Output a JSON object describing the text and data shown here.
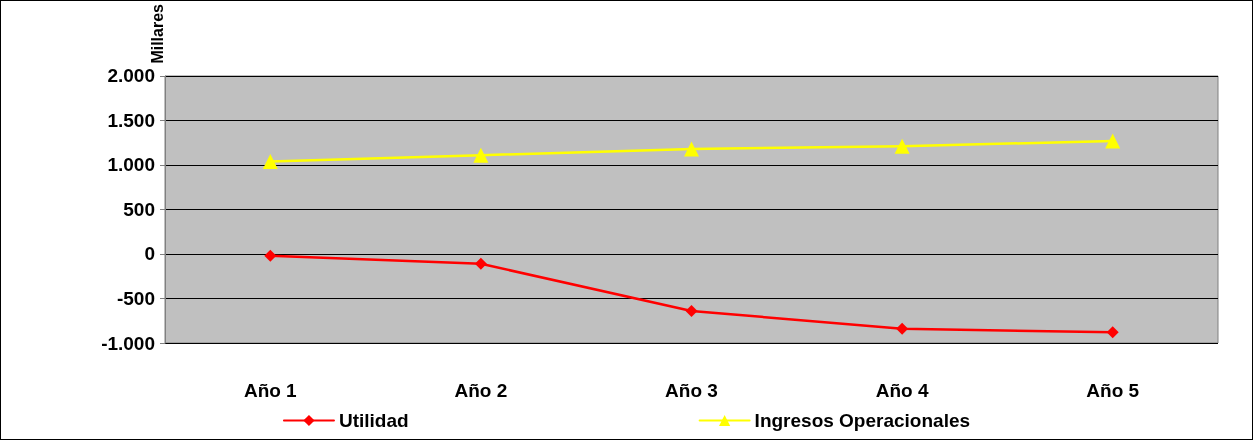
{
  "chart_data": {
    "type": "line",
    "ylabel": "Millares",
    "categories": [
      "Año 1",
      "Año 2",
      "Año 3",
      "Año 4",
      "Año 5"
    ],
    "series": [
      {
        "name": "Utilidad",
        "color": "#ff0000",
        "marker": "diamond",
        "values": [
          -20,
          -110,
          -640,
          -840,
          -880
        ]
      },
      {
        "name": "Ingresos Operacionales",
        "color": "#ffff00",
        "marker": "triangle",
        "values": [
          1040,
          1110,
          1180,
          1210,
          1270
        ]
      }
    ],
    "ylim": [
      -1000,
      2000
    ],
    "yticks": [
      {
        "value": -1000,
        "label": "-1.000"
      },
      {
        "value": -500,
        "label": "-500"
      },
      {
        "value": 0,
        "label": "0"
      },
      {
        "value": 500,
        "label": "500"
      },
      {
        "value": 1000,
        "label": "1.000"
      },
      {
        "value": 1500,
        "label": "1.500"
      },
      {
        "value": 2000,
        "label": "2.000"
      }
    ],
    "grid": "y",
    "legend": "bottom",
    "line_style": "solid"
  }
}
